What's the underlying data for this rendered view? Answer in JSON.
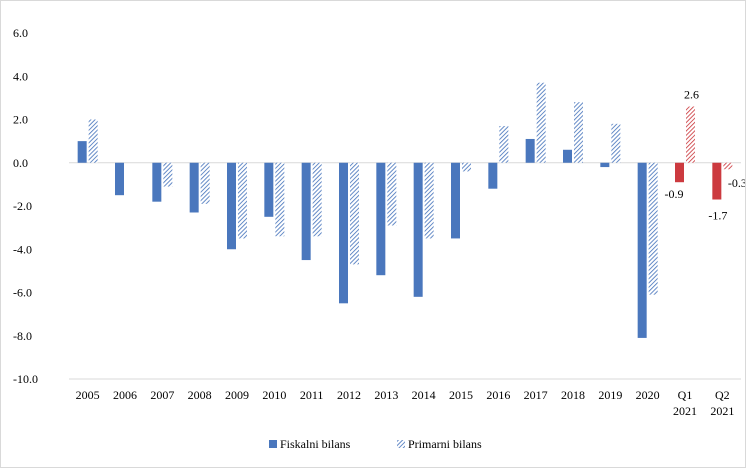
{
  "chart_data": {
    "type": "bar",
    "categories": [
      "2005",
      "2006",
      "2007",
      "2008",
      "2009",
      "2010",
      "2011",
      "2012",
      "2013",
      "2014",
      "2015",
      "2016",
      "2017",
      "2018",
      "2019",
      "2020",
      [
        "Q1",
        "2021"
      ],
      [
        "Q2",
        "2021"
      ]
    ],
    "series": [
      {
        "name": "Fiskalni bilans",
        "pattern": "solid",
        "values": [
          1.0,
          -1.5,
          -1.8,
          -2.3,
          -4.0,
          -2.5,
          -4.5,
          -6.5,
          -5.2,
          -6.2,
          -3.5,
          -1.2,
          1.1,
          0.6,
          -0.2,
          -8.1,
          -0.9,
          -1.7
        ]
      },
      {
        "name": "Primarni bilans",
        "pattern": "hatched",
        "values": [
          2.0,
          null,
          -1.1,
          -1.9,
          -3.5,
          -3.4,
          -3.4,
          -4.7,
          -2.9,
          -3.5,
          -0.4,
          1.7,
          3.7,
          2.8,
          1.8,
          -6.1,
          2.6,
          -0.3
        ]
      }
    ],
    "highlight_categories": [
      16,
      17
    ],
    "data_labels": [
      {
        "text": "-0.9",
        "category": 16,
        "series": 0
      },
      {
        "text": "2.6",
        "category": 16,
        "series": 1
      },
      {
        "text": "-1.7",
        "category": 17,
        "series": 0
      },
      {
        "text": "-0.3",
        "category": 17,
        "series": 1
      }
    ],
    "ylim": [
      -10,
      6
    ],
    "y_ticks": [
      "6.0",
      "4.0",
      "2.0",
      "0.0",
      "-2.0",
      "-4.0",
      "-6.0",
      "-8.0",
      "-10.0"
    ],
    "grid": false,
    "legend_position": "bottom",
    "colors": {
      "blue": "#4a77bd",
      "red": "#cc3a3f",
      "axis": "#d9d9d9"
    }
  }
}
